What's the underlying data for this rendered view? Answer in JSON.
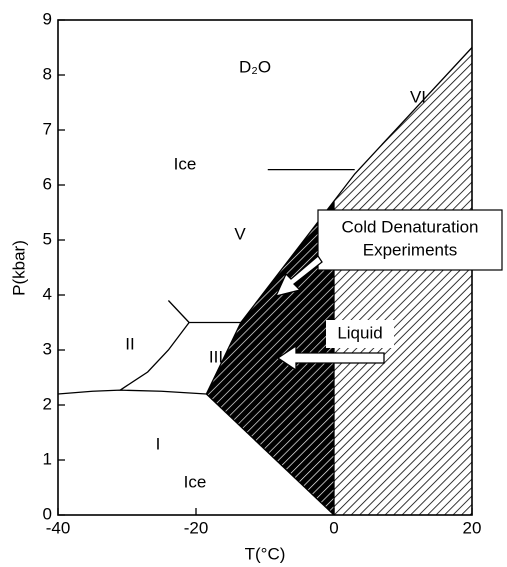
{
  "chart_data": {
    "type": "phase",
    "xlabel": "T(°C)",
    "ylabel": "P(kbar)",
    "xlim": [
      -40,
      20
    ],
    "xticks": [
      -40,
      -20,
      0,
      20
    ],
    "ylim": [
      0,
      9
    ],
    "yticks": [
      0,
      1,
      2,
      3,
      4,
      5,
      6,
      7,
      8,
      9
    ],
    "regions": [
      {
        "pattern": "light",
        "x": [
          0,
          -18.5,
          -13.5,
          3,
          20,
          20
        ],
        "y": [
          0,
          2.2,
          3.5,
          6.2,
          8.5,
          0
        ]
      },
      {
        "pattern": "dark",
        "x": [
          0,
          -18.5,
          -13.5,
          0
        ],
        "y": [
          0,
          2.2,
          3.5,
          5.71
        ]
      }
    ],
    "series": [
      {
        "x": [
          -40,
          -35,
          -31,
          -25,
          -18.5
        ],
        "y": [
          2.2,
          2.25,
          2.27,
          2.25,
          2.2
        ]
      },
      {
        "x": [
          -31,
          -27,
          -24,
          -21
        ],
        "y": [
          2.27,
          2.6,
          3.0,
          3.5
        ]
      },
      {
        "x": [
          -21,
          -24
        ],
        "y": [
          3.5,
          3.9
        ]
      },
      {
        "x": [
          -21,
          -13.5
        ],
        "y": [
          3.5,
          3.5
        ]
      },
      {
        "x": [
          -9.6,
          3
        ],
        "y": [
          6.28,
          6.28
        ]
      },
      {
        "x": [
          0,
          -18.5,
          -13.5,
          3,
          20
        ],
        "y": [
          0,
          2.2,
          3.5,
          6.2,
          8.5
        ]
      },
      {
        "x": [
          0,
          0
        ],
        "y": [
          0,
          5.71
        ]
      }
    ],
    "labels": [
      "D₂O",
      "VI",
      "Ice",
      "V",
      "II",
      "III",
      "I",
      "Ice"
    ],
    "callouts": {
      "cold": [
        "Cold Denaturation",
        "Experiments"
      ],
      "liquid": "Liquid"
    }
  }
}
